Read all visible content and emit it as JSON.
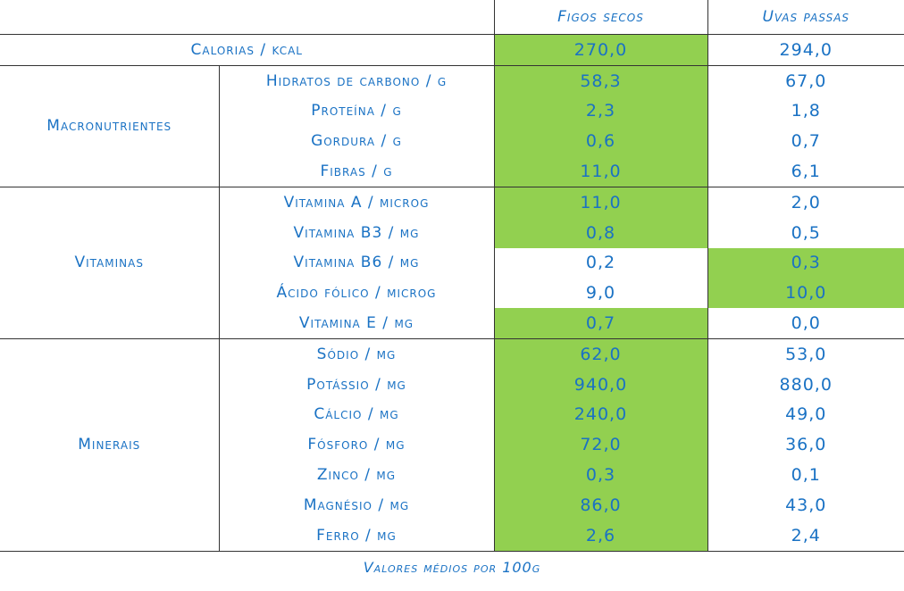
{
  "table": {
    "header": [
      "Figos secos",
      "Uvas passas"
    ],
    "highlight_color": "#92d050",
    "calories": {
      "label": "Calorias / kcal",
      "values": [
        "270,0",
        "294,0"
      ],
      "highlight": 0
    },
    "groups": [
      {
        "name": "Macronutrientes",
        "rows": [
          {
            "label": "Hidratos de carbono / g",
            "values": [
              "58,3",
              "67,0"
            ],
            "highlight": 0
          },
          {
            "label": "Proteína / g",
            "values": [
              "2,3",
              "1,8"
            ],
            "highlight": 0
          },
          {
            "label": "Gordura / g",
            "values": [
              "0,6",
              "0,7"
            ],
            "highlight": 0
          },
          {
            "label": "Fibras / g",
            "values": [
              "11,0",
              "6,1"
            ],
            "highlight": 0
          }
        ]
      },
      {
        "name": "Vitaminas",
        "rows": [
          {
            "label": "Vitamina A / microg",
            "values": [
              "11,0",
              "2,0"
            ],
            "highlight": 0
          },
          {
            "label": "Vitamina B3 / mg",
            "values": [
              "0,8",
              "0,5"
            ],
            "highlight": 0
          },
          {
            "label": "Vitamina B6 / mg",
            "values": [
              "0,2",
              "0,3"
            ],
            "highlight": 1
          },
          {
            "label": "Ácido fólico / microg",
            "values": [
              "9,0",
              "10,0"
            ],
            "highlight": 1
          },
          {
            "label": "Vitamina E / mg",
            "values": [
              "0,7",
              "0,0"
            ],
            "highlight": 0
          }
        ]
      },
      {
        "name": "Minerais",
        "rows": [
          {
            "label": "Sódio / mg",
            "values": [
              "62,0",
              "53,0"
            ],
            "highlight": 0
          },
          {
            "label": "Potássio / mg",
            "values": [
              "940,0",
              "880,0"
            ],
            "highlight": 0
          },
          {
            "label": "Cálcio / mg",
            "values": [
              "240,0",
              "49,0"
            ],
            "highlight": 0
          },
          {
            "label": "Fósforo / mg",
            "values": [
              "72,0",
              "36,0"
            ],
            "highlight": 0
          },
          {
            "label": "Zinco / mg",
            "values": [
              "0,3",
              "0,1"
            ],
            "highlight": 0
          },
          {
            "label": "Magnésio / mg",
            "values": [
              "86,0",
              "43,0"
            ],
            "highlight": 0
          },
          {
            "label": "Ferro / mg",
            "values": [
              "2,6",
              "2,4"
            ],
            "highlight": 0
          }
        ]
      }
    ],
    "footnote": "Valores médios por 100g"
  }
}
